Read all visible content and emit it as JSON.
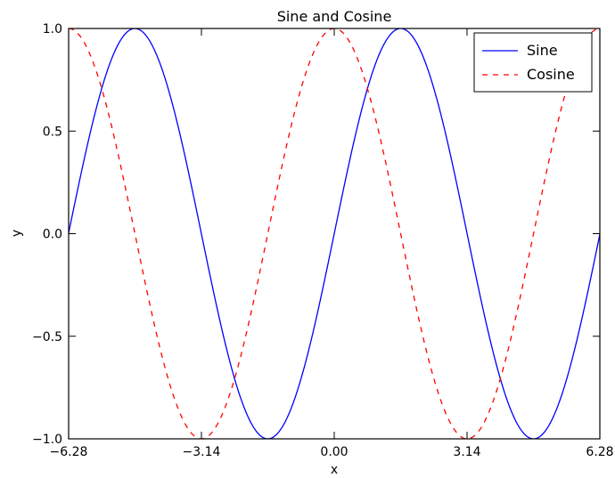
{
  "chart_data": {
    "type": "line",
    "title": "Sine and Cosine",
    "xlabel": "x",
    "ylabel": "y",
    "xlim": [
      -6.28,
      6.28
    ],
    "ylim": [
      -1.0,
      1.0
    ],
    "xticks": [
      -6.28,
      -3.14,
      0.0,
      3.14,
      6.28
    ],
    "xtick_labels": [
      "−6.28",
      "−3.14",
      "0.00",
      "3.14",
      "6.28"
    ],
    "yticks": [
      -1.0,
      -0.5,
      0.0,
      0.5,
      1.0
    ],
    "ytick_labels": [
      "−1.0",
      "−0.5",
      "0.0",
      "0.5",
      "1.0"
    ],
    "grid": false,
    "legend_position": "upper right",
    "x": [
      -6.28,
      -5.5,
      -4.71,
      -3.93,
      -3.14,
      -2.36,
      -1.57,
      -0.79,
      0.0,
      0.79,
      1.57,
      2.36,
      3.14,
      3.93,
      4.71,
      5.5,
      6.28
    ],
    "series": [
      {
        "name": "Sine",
        "function": "sin",
        "color": "#0000ff",
        "style": "solid",
        "values": [
          0.0,
          0.71,
          1.0,
          0.71,
          0.0,
          -0.71,
          -1.0,
          -0.71,
          0.0,
          0.71,
          1.0,
          0.71,
          0.0,
          -0.71,
          -1.0,
          -0.71,
          0.0
        ]
      },
      {
        "name": "Cosine",
        "function": "cos",
        "color": "#ff0000",
        "style": "dashed",
        "values": [
          1.0,
          0.71,
          0.0,
          -0.71,
          -1.0,
          -0.71,
          0.0,
          0.71,
          1.0,
          0.71,
          0.0,
          -0.71,
          -1.0,
          -0.71,
          0.0,
          0.71,
          1.0
        ]
      }
    ]
  }
}
